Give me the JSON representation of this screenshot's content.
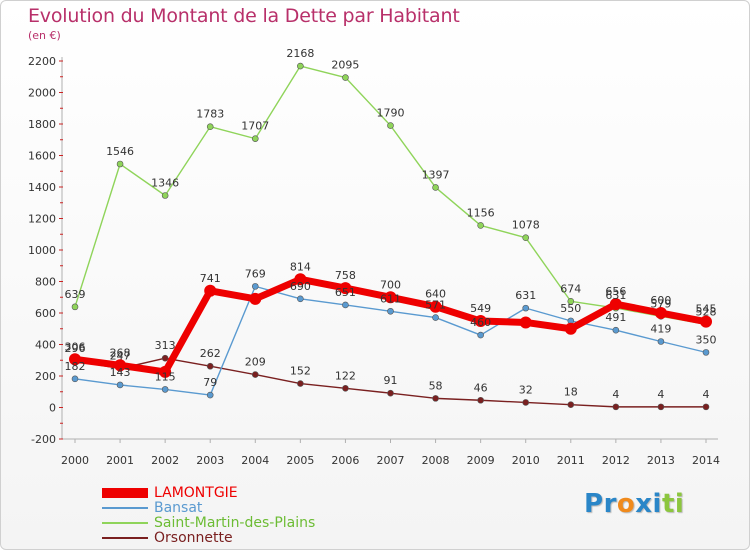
{
  "title": "Evolution du Montant de la Dette par Habitant",
  "unit": "(en €)",
  "logo": {
    "text": "Proxiti",
    "letters": [
      {
        "ch": "P",
        "color": "#2a86c8"
      },
      {
        "ch": "r",
        "color": "#2a86c8"
      },
      {
        "ch": "o",
        "color": "#f08a1c"
      },
      {
        "ch": "x",
        "color": "#2a86c8"
      },
      {
        "ch": "i",
        "color": "#2a86c8"
      },
      {
        "ch": "t",
        "color": "#8cc63e"
      },
      {
        "ch": "i",
        "color": "#8cc63e"
      }
    ]
  },
  "chart_data": {
    "type": "line",
    "title": "Evolution du Montant de la Dette par Habitant",
    "ylabel": "(en €)",
    "x": [
      2000,
      2001,
      2002,
      2003,
      2004,
      2005,
      2006,
      2007,
      2008,
      2009,
      2010,
      2011,
      2012,
      2013,
      2014
    ],
    "ylim": [
      -200,
      2200
    ],
    "yticks": [
      -200,
      0,
      200,
      400,
      600,
      800,
      1000,
      1200,
      1400,
      1600,
      1800,
      2000,
      2200
    ],
    "grid": false,
    "legend_position": "bottom-left",
    "series": [
      {
        "name": "LAMONTGIE",
        "color": "#ee0000",
        "values": [
          306,
          268,
          226,
          741,
          690,
          814,
          758,
          700,
          640,
          549,
          540,
          500,
          656,
          600,
          545
        ],
        "labels": [
          "306",
          "268",
          "",
          "741",
          "",
          "814",
          "758",
          "700",
          "640",
          "549",
          "",
          "",
          "656",
          "600",
          "545"
        ]
      },
      {
        "name": "Bansat",
        "color": "#5a9ad0",
        "values": [
          182,
          143,
          115,
          79,
          769,
          690,
          651,
          611,
          571,
          460,
          631,
          550,
          491,
          419,
          350
        ],
        "labels": [
          "182",
          "143",
          "115",
          "79",
          "769",
          "690",
          "651",
          "611",
          "571",
          "460",
          "631",
          "550",
          "491",
          "419",
          "350"
        ]
      },
      {
        "name": "Saint-Martin-des-Plains",
        "color": "#8fd45a",
        "values": [
          639,
          1546,
          1346,
          1783,
          1707,
          2168,
          2095,
          1790,
          1397,
          1156,
          1078,
          674,
          631,
          579,
          528
        ],
        "labels": [
          "639",
          "1546",
          "1346",
          "1783",
          "1707",
          "2168",
          "2095",
          "1790",
          "1397",
          "1156",
          "1078",
          "674",
          "631",
          "579",
          "528"
        ]
      },
      {
        "name": "Orsonnette",
        "color": "#7a2020",
        "values": [
          296,
          247,
          313,
          262,
          209,
          152,
          122,
          91,
          58,
          46,
          32,
          18,
          4,
          4,
          4
        ],
        "labels": [
          "296",
          "247",
          "313",
          "262",
          "209",
          "152",
          "122",
          "91",
          "58",
          "46",
          "32",
          "18",
          "4",
          "4",
          "4"
        ]
      }
    ]
  }
}
